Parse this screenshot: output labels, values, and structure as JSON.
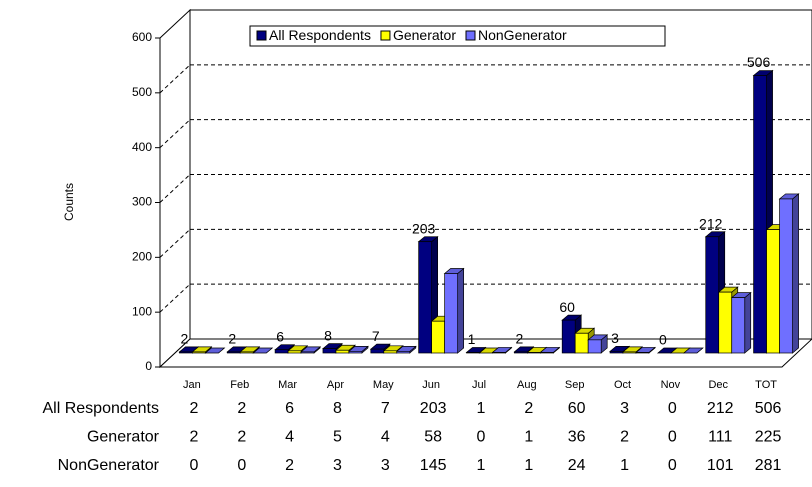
{
  "chart_data": {
    "type": "bar3d",
    "y_label": "Counts",
    "categories": [
      "Jan",
      "Feb",
      "Mar",
      "Apr",
      "May",
      "Jun",
      "Jul",
      "Aug",
      "Sep",
      "Oct",
      "Nov",
      "Dec",
      "TOT"
    ],
    "series": [
      {
        "name": "All Respondents",
        "color": "#000080",
        "values": [
          2,
          2,
          6,
          8,
          7,
          203,
          1,
          2,
          60,
          3,
          0,
          212,
          506
        ]
      },
      {
        "name": "Generator",
        "color": "#ffff00",
        "values": [
          2,
          2,
          4,
          5,
          4,
          58,
          0,
          1,
          36,
          2,
          0,
          111,
          225
        ]
      },
      {
        "name": "NonGenerator",
        "color": "#6f6fff",
        "values": [
          0,
          0,
          2,
          3,
          3,
          145,
          1,
          1,
          24,
          1,
          0,
          101,
          281
        ]
      }
    ],
    "ylim": [
      0,
      600
    ],
    "yticks": [
      0,
      100,
      200,
      300,
      400,
      500,
      600
    ],
    "grid": true
  }
}
